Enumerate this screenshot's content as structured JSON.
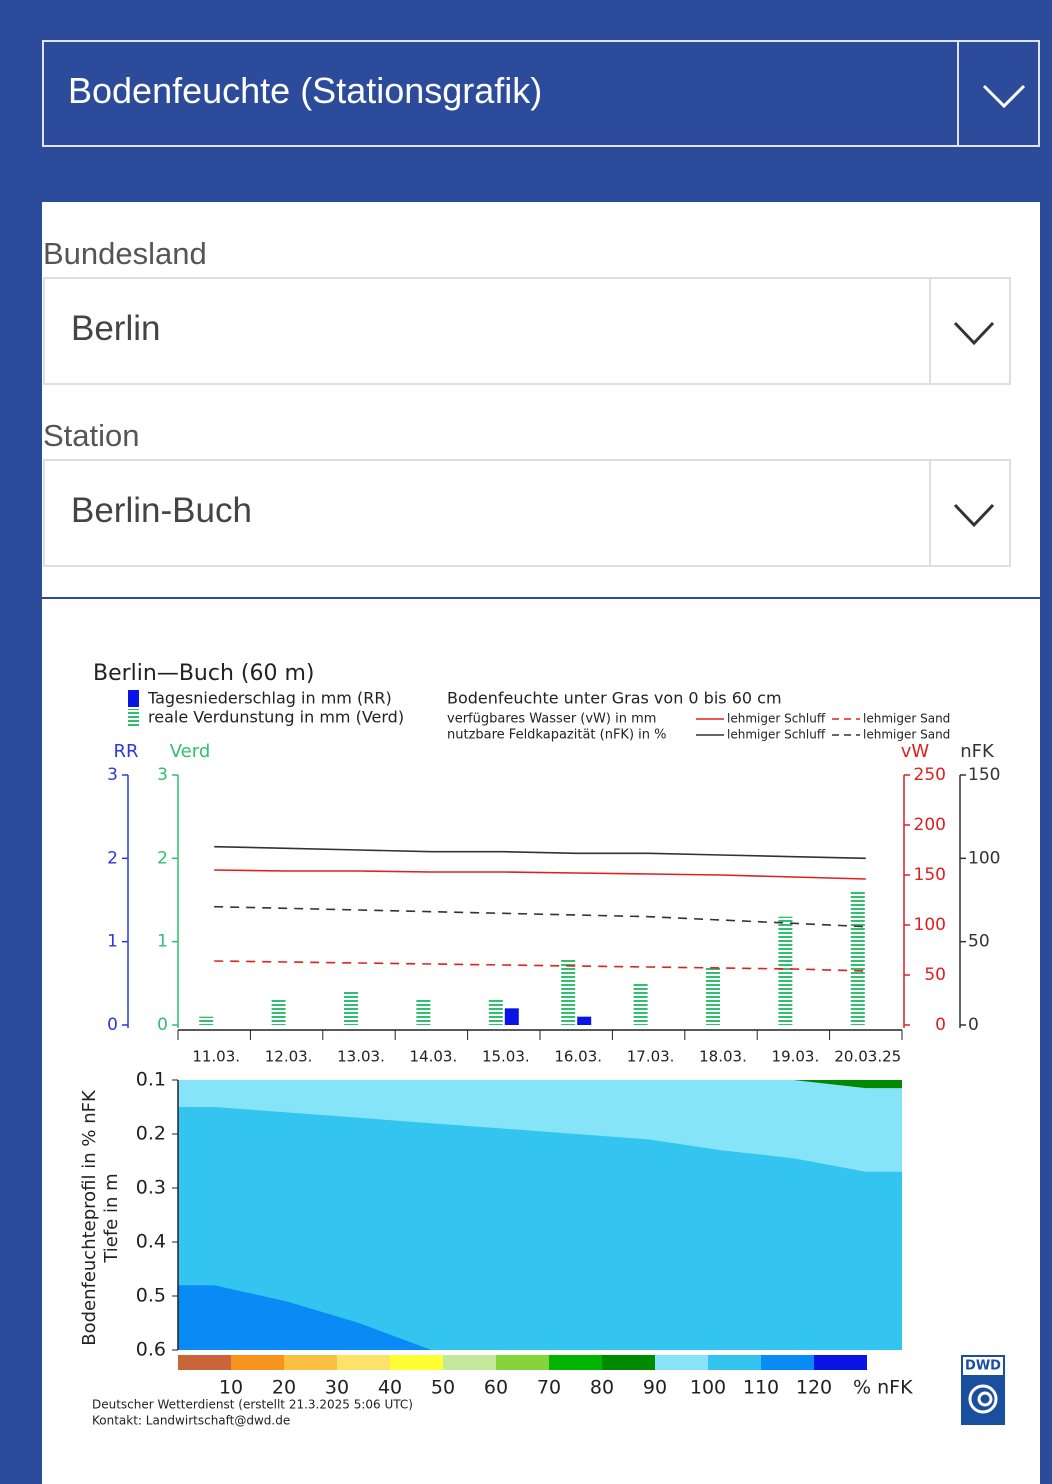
{
  "header": {
    "title": "Bodenfeuchte (Stationsgrafik)"
  },
  "form": {
    "fields": [
      {
        "label": "Bundesland",
        "value": "Berlin"
      },
      {
        "label": "Station",
        "value": "Berlin-Buch"
      }
    ]
  },
  "chart_data": {
    "type": "bar",
    "title": "Berlin—Buch (60 m)",
    "subtitle": "Bodenfeuchte unter Gras von 0 bis 60 cm",
    "categories": [
      "11.03.",
      "12.03.",
      "13.03.",
      "14.03.",
      "15.03.",
      "16.03.",
      "17.03.",
      "18.03.",
      "19.03.",
      "20.03.25"
    ],
    "axes": [
      {
        "label": "RR",
        "lim": [
          0,
          3
        ],
        "ticks": [
          0,
          1,
          2,
          3
        ],
        "color": "#2a3ad8"
      },
      {
        "label": "Verd",
        "lim": [
          0,
          3
        ],
        "ticks": [
          0,
          1,
          2,
          3
        ],
        "color": "#2fbf6f"
      },
      {
        "label": "vW",
        "lim": [
          0,
          250
        ],
        "ticks": [
          0,
          50,
          100,
          150,
          200,
          250
        ],
        "color": "#e02020"
      },
      {
        "label": "nFK",
        "lim": [
          0,
          150
        ],
        "ticks": [
          0,
          50,
          100,
          150
        ],
        "color": "#333333"
      }
    ],
    "line_groups": [
      "verfügbares Wasser (vW) in mm",
      "nutzbare Feldkapazität (nFK) in %"
    ],
    "series": [
      {
        "name": "Tagesniederschlag in mm (RR)",
        "type": "bar",
        "axis": 0,
        "color": "#0a14e6",
        "values": [
          0,
          0,
          0,
          0,
          0.2,
          0.1,
          0,
          0,
          0,
          0
        ]
      },
      {
        "name": "reale Verdunstung in mm (Verd)",
        "type": "bar",
        "axis": 1,
        "color": "#2fbf6f",
        "values": [
          0.1,
          0.3,
          0.4,
          0.3,
          0.3,
          0.8,
          0.5,
          0.7,
          1.3,
          1.6
        ]
      },
      {
        "name": "lehmiger Schluff",
        "type": "line",
        "axis": 2,
        "group": 0,
        "dash": false,
        "color": "#e02020",
        "values": [
          155,
          154,
          154,
          153,
          153,
          152,
          151,
          150,
          148,
          146
        ]
      },
      {
        "name": "lehmiger Sand",
        "type": "line",
        "axis": 2,
        "group": 0,
        "dash": true,
        "color": "#e02020",
        "values": [
          64,
          63,
          62,
          61,
          60,
          59,
          58,
          57,
          56,
          54
        ]
      },
      {
        "name": "lehmiger Schluff",
        "type": "line",
        "axis": 3,
        "group": 1,
        "dash": false,
        "color": "#333333",
        "values": [
          107,
          106,
          105,
          104,
          104,
          103,
          103,
          102,
          101,
          100
        ]
      },
      {
        "name": "lehmiger Sand",
        "type": "line",
        "axis": 3,
        "group": 1,
        "dash": true,
        "color": "#333333",
        "values": [
          71,
          70,
          69,
          68,
          67,
          66,
          65,
          63,
          61,
          59
        ]
      }
    ],
    "profile": {
      "ylabel": "Bodenfeuchteprofil in % nFK",
      "ylabel2": "Tiefe in m",
      "ylim": [
        0.1,
        0.6
      ],
      "yticks": [
        0.1,
        0.2,
        0.3,
        0.4,
        0.5,
        0.6
      ],
      "base_color": "#86e4f8",
      "layers": [
        {
          "color": "#33c5f0",
          "fill": "below",
          "values": [
            0.15,
            0.16,
            0.17,
            0.18,
            0.19,
            0.2,
            0.21,
            0.23,
            0.245,
            0.27
          ]
        },
        {
          "color": "#0a8af5",
          "fill": "below",
          "values": [
            0.48,
            0.51,
            0.55,
            0.6,
            0.6,
            0.6,
            0.6,
            0.6,
            0.6,
            0.6
          ]
        },
        {
          "color": "#008a00",
          "fill": "above",
          "values": [
            null,
            null,
            null,
            null,
            null,
            null,
            null,
            null,
            0.1,
            0.115
          ]
        }
      ]
    },
    "colorscale": {
      "colors": [
        "#c8663a",
        "#f7931e",
        "#fbc040",
        "#fde26a",
        "#ffff33",
        "#c3e89c",
        "#85d43c",
        "#00b400",
        "#008a00",
        "#86e4f8",
        "#33c5f0",
        "#0a8af5",
        "#0a14e6"
      ],
      "ticks": [
        10,
        20,
        30,
        40,
        50,
        60,
        70,
        80,
        90,
        100,
        110,
        120
      ],
      "unit": "% nFK"
    },
    "credit": "Deutscher Wetterdienst (erstellt 21.3.2025 5:06 UTC)",
    "contact": "Kontakt: Landwirtschaft@dwd.de",
    "logo": "DWD"
  }
}
